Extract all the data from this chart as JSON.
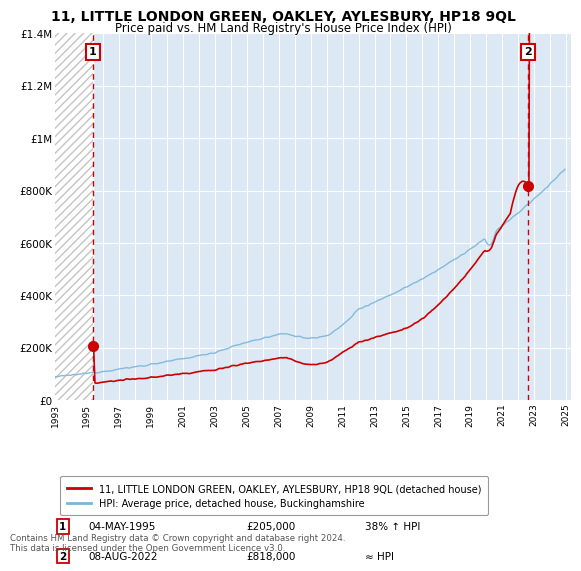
{
  "title": "11, LITTLE LONDON GREEN, OAKLEY, AYLESBURY, HP18 9QL",
  "subtitle": "Price paid vs. HM Land Registry's House Price Index (HPI)",
  "legend_line1": "11, LITTLE LONDON GREEN, OAKLEY, AYLESBURY, HP18 9QL (detached house)",
  "legend_line2": "HPI: Average price, detached house, Buckinghamshire",
  "annotation1_label": "1",
  "annotation1_date": "04-MAY-1995",
  "annotation1_price": "£205,000",
  "annotation1_hpi": "38% ↑ HPI",
  "annotation2_label": "2",
  "annotation2_date": "08-AUG-2022",
  "annotation2_price": "£818,000",
  "annotation2_hpi": "≈ HPI",
  "footnote": "Contains HM Land Registry data © Crown copyright and database right 2024.\nThis data is licensed under the Open Government Licence v3.0.",
  "sale1_year": 1995.35,
  "sale1_value": 205000,
  "sale2_year": 2022.6,
  "sale2_value": 818000,
  "hpi_color": "#7ab5d8",
  "price_color": "#cc0000",
  "dashed_color": "#cc0000",
  "ylim": [
    0,
    1400000
  ],
  "yticks": [
    0,
    200000,
    400000,
    600000,
    800000,
    1000000,
    1200000,
    1400000
  ],
  "ytick_labels": [
    "£0",
    "£200K",
    "£400K",
    "£600K",
    "£800K",
    "£1M",
    "£1.2M",
    "£1.4M"
  ],
  "background_color": "#ffffff",
  "plot_bg_color": "#dce9f5"
}
